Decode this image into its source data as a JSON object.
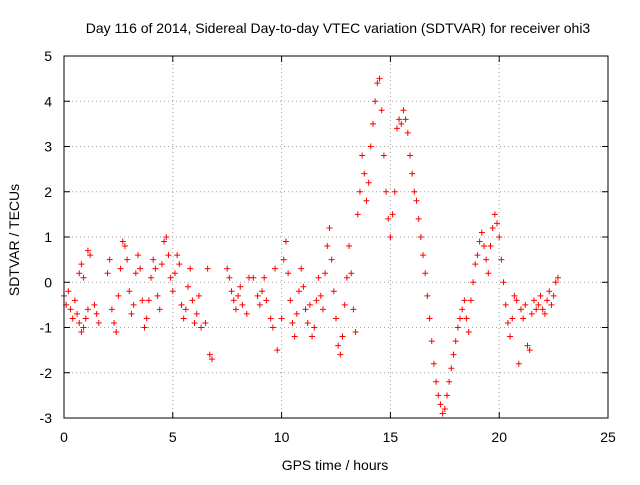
{
  "chart_data": {
    "type": "scatter",
    "title": "Day 116 of 2014, Sidereal Day-to-day VTEC variation (SDTVAR) for receiver ohi3",
    "xlabel": "GPS time / hours",
    "ylabel": "SDTVAR / TECUs",
    "xlim": [
      0,
      25
    ],
    "ylim": [
      -3,
      5
    ],
    "xticks": [
      0,
      5,
      10,
      15,
      20,
      25
    ],
    "yticks": [
      -3,
      -2,
      -1,
      0,
      1,
      2,
      3,
      4,
      5
    ],
    "grid": true,
    "marker": "+",
    "marker_color": "#ff0000",
    "series": [
      {
        "name": "SDTVAR",
        "points": [
          [
            0.0,
            -0.3
          ],
          [
            0.1,
            -0.5
          ],
          [
            0.2,
            -0.2
          ],
          [
            0.3,
            -0.6
          ],
          [
            0.4,
            -0.8
          ],
          [
            0.5,
            -0.4
          ],
          [
            0.6,
            -0.7
          ],
          [
            0.7,
            -0.9
          ],
          [
            0.8,
            -1.1
          ],
          [
            0.9,
            -1.0
          ],
          [
            1.0,
            -0.8
          ],
          [
            1.1,
            -0.6
          ],
          [
            0.7,
            0.2
          ],
          [
            0.8,
            0.4
          ],
          [
            0.9,
            0.1
          ],
          [
            1.1,
            0.7
          ],
          [
            1.2,
            0.6
          ],
          [
            1.4,
            -0.5
          ],
          [
            1.5,
            -0.7
          ],
          [
            1.6,
            -0.9
          ],
          [
            2.0,
            0.2
          ],
          [
            2.1,
            0.5
          ],
          [
            2.2,
            -0.6
          ],
          [
            2.3,
            -0.9
          ],
          [
            2.4,
            -1.1
          ],
          [
            2.5,
            -0.3
          ],
          [
            2.6,
            0.3
          ],
          [
            2.7,
            0.9
          ],
          [
            2.8,
            0.8
          ],
          [
            2.9,
            0.5
          ],
          [
            3.0,
            -0.2
          ],
          [
            3.1,
            -0.7
          ],
          [
            3.2,
            -0.5
          ],
          [
            3.3,
            0.2
          ],
          [
            3.4,
            0.6
          ],
          [
            3.5,
            0.3
          ],
          [
            3.6,
            -0.4
          ],
          [
            3.7,
            -1.0
          ],
          [
            3.8,
            -0.8
          ],
          [
            3.9,
            -0.4
          ],
          [
            4.0,
            0.1
          ],
          [
            4.1,
            0.5
          ],
          [
            4.2,
            0.3
          ],
          [
            4.3,
            -0.3
          ],
          [
            4.4,
            -0.6
          ],
          [
            4.5,
            0.4
          ],
          [
            4.6,
            0.9
          ],
          [
            4.7,
            1.0
          ],
          [
            4.8,
            0.6
          ],
          [
            4.9,
            0.1
          ],
          [
            5.0,
            -0.2
          ],
          [
            5.1,
            0.2
          ],
          [
            5.2,
            0.6
          ],
          [
            5.3,
            0.4
          ],
          [
            5.4,
            -0.5
          ],
          [
            5.5,
            -0.8
          ],
          [
            5.6,
            -0.6
          ],
          [
            5.7,
            -0.1
          ],
          [
            5.8,
            0.3
          ],
          [
            5.9,
            -0.4
          ],
          [
            6.0,
            -0.9
          ],
          [
            6.1,
            -0.7
          ],
          [
            6.2,
            -0.3
          ],
          [
            6.3,
            -1.0
          ],
          [
            6.5,
            -0.9
          ],
          [
            6.6,
            0.3
          ],
          [
            6.7,
            -1.6
          ],
          [
            6.8,
            -1.7
          ],
          [
            7.5,
            0.3
          ],
          [
            7.6,
            0.1
          ],
          [
            7.7,
            -0.2
          ],
          [
            7.8,
            -0.4
          ],
          [
            7.9,
            -0.6
          ],
          [
            8.0,
            -0.3
          ],
          [
            8.1,
            -0.1
          ],
          [
            8.2,
            -0.5
          ],
          [
            8.4,
            -0.7
          ],
          [
            8.5,
            0.1
          ],
          [
            8.7,
            0.1
          ],
          [
            8.9,
            -0.3
          ],
          [
            9.0,
            -0.5
          ],
          [
            9.1,
            -0.2
          ],
          [
            9.2,
            0.1
          ],
          [
            9.3,
            -0.4
          ],
          [
            9.5,
            -0.8
          ],
          [
            9.6,
            -1.0
          ],
          [
            9.7,
            0.3
          ],
          [
            9.8,
            -1.5
          ],
          [
            10.0,
            -0.8
          ],
          [
            10.1,
            0.5
          ],
          [
            10.2,
            0.9
          ],
          [
            10.3,
            0.2
          ],
          [
            10.4,
            -0.4
          ],
          [
            10.5,
            -0.9
          ],
          [
            10.6,
            -1.2
          ],
          [
            10.7,
            -0.7
          ],
          [
            10.8,
            -0.2
          ],
          [
            10.9,
            0.3
          ],
          [
            11.0,
            -0.1
          ],
          [
            11.1,
            -0.6
          ],
          [
            11.2,
            -0.9
          ],
          [
            11.3,
            -0.5
          ],
          [
            11.4,
            -1.2
          ],
          [
            11.5,
            -1.0
          ],
          [
            11.6,
            -0.4
          ],
          [
            11.7,
            0.1
          ],
          [
            11.8,
            -0.3
          ],
          [
            11.9,
            -0.6
          ],
          [
            12.0,
            0.2
          ],
          [
            12.1,
            0.8
          ],
          [
            12.2,
            1.2
          ],
          [
            12.3,
            0.5
          ],
          [
            12.4,
            -0.2
          ],
          [
            12.5,
            -0.8
          ],
          [
            12.6,
            -1.4
          ],
          [
            12.7,
            -1.6
          ],
          [
            12.8,
            -1.2
          ],
          [
            12.9,
            -0.5
          ],
          [
            13.0,
            0.1
          ],
          [
            13.1,
            0.8
          ],
          [
            13.2,
            0.2
          ],
          [
            13.3,
            -0.6
          ],
          [
            13.4,
            -1.1
          ],
          [
            13.5,
            1.5
          ],
          [
            13.6,
            2.0
          ],
          [
            13.7,
            2.8
          ],
          [
            13.8,
            2.4
          ],
          [
            13.9,
            1.8
          ],
          [
            14.0,
            2.2
          ],
          [
            14.1,
            3.0
          ],
          [
            14.2,
            3.5
          ],
          [
            14.3,
            4.0
          ],
          [
            14.4,
            4.4
          ],
          [
            14.5,
            4.5
          ],
          [
            14.6,
            3.8
          ],
          [
            14.7,
            2.8
          ],
          [
            14.8,
            2.0
          ],
          [
            14.9,
            1.4
          ],
          [
            15.0,
            1.0
          ],
          [
            15.1,
            1.5
          ],
          [
            15.2,
            2.0
          ],
          [
            15.3,
            3.4
          ],
          [
            15.4,
            3.6
          ],
          [
            15.5,
            3.5
          ],
          [
            15.6,
            3.8
          ],
          [
            15.7,
            3.6
          ],
          [
            15.8,
            3.3
          ],
          [
            15.9,
            2.8
          ],
          [
            16.0,
            2.4
          ],
          [
            16.1,
            2.0
          ],
          [
            16.2,
            1.8
          ],
          [
            16.3,
            1.4
          ],
          [
            16.4,
            1.0
          ],
          [
            16.5,
            0.6
          ],
          [
            16.6,
            0.2
          ],
          [
            16.7,
            -0.3
          ],
          [
            16.8,
            -0.8
          ],
          [
            16.9,
            -1.3
          ],
          [
            17.0,
            -1.8
          ],
          [
            17.1,
            -2.2
          ],
          [
            17.2,
            -2.5
          ],
          [
            17.3,
            -2.7
          ],
          [
            17.4,
            -2.9
          ],
          [
            17.5,
            -2.8
          ],
          [
            17.6,
            -2.5
          ],
          [
            17.7,
            -2.2
          ],
          [
            17.8,
            -1.9
          ],
          [
            17.9,
            -1.6
          ],
          [
            18.0,
            -1.3
          ],
          [
            18.1,
            -1.0
          ],
          [
            18.2,
            -0.8
          ],
          [
            18.3,
            -0.6
          ],
          [
            18.4,
            -0.4
          ],
          [
            18.5,
            -0.8
          ],
          [
            18.6,
            -1.1
          ],
          [
            18.7,
            -0.4
          ],
          [
            18.8,
            0.0
          ],
          [
            18.9,
            0.4
          ],
          [
            19.0,
            0.6
          ],
          [
            19.1,
            0.9
          ],
          [
            19.2,
            1.1
          ],
          [
            19.3,
            0.8
          ],
          [
            19.4,
            0.5
          ],
          [
            19.5,
            0.2
          ],
          [
            19.6,
            0.8
          ],
          [
            19.7,
            1.2
          ],
          [
            19.8,
            1.5
          ],
          [
            19.9,
            1.3
          ],
          [
            20.0,
            1.0
          ],
          [
            20.1,
            0.5
          ],
          [
            20.2,
            0.0
          ],
          [
            20.3,
            -0.5
          ],
          [
            20.4,
            -0.9
          ],
          [
            20.5,
            -1.2
          ],
          [
            20.6,
            -0.8
          ],
          [
            20.7,
            -0.3
          ],
          [
            20.8,
            -0.4
          ],
          [
            20.9,
            -1.8
          ],
          [
            21.0,
            -0.6
          ],
          [
            21.1,
            -0.8
          ],
          [
            21.2,
            -0.5
          ],
          [
            21.3,
            -1.4
          ],
          [
            21.4,
            -1.5
          ],
          [
            21.5,
            -0.7
          ],
          [
            21.6,
            -0.4
          ],
          [
            21.7,
            -0.6
          ],
          [
            21.8,
            -0.5
          ],
          [
            21.9,
            -0.3
          ],
          [
            22.0,
            -0.6
          ],
          [
            22.1,
            -0.7
          ],
          [
            22.2,
            -0.4
          ],
          [
            22.3,
            -0.2
          ],
          [
            22.4,
            -0.5
          ],
          [
            22.5,
            -0.3
          ],
          [
            22.6,
            0.0
          ],
          [
            22.7,
            0.1
          ]
        ]
      }
    ]
  }
}
